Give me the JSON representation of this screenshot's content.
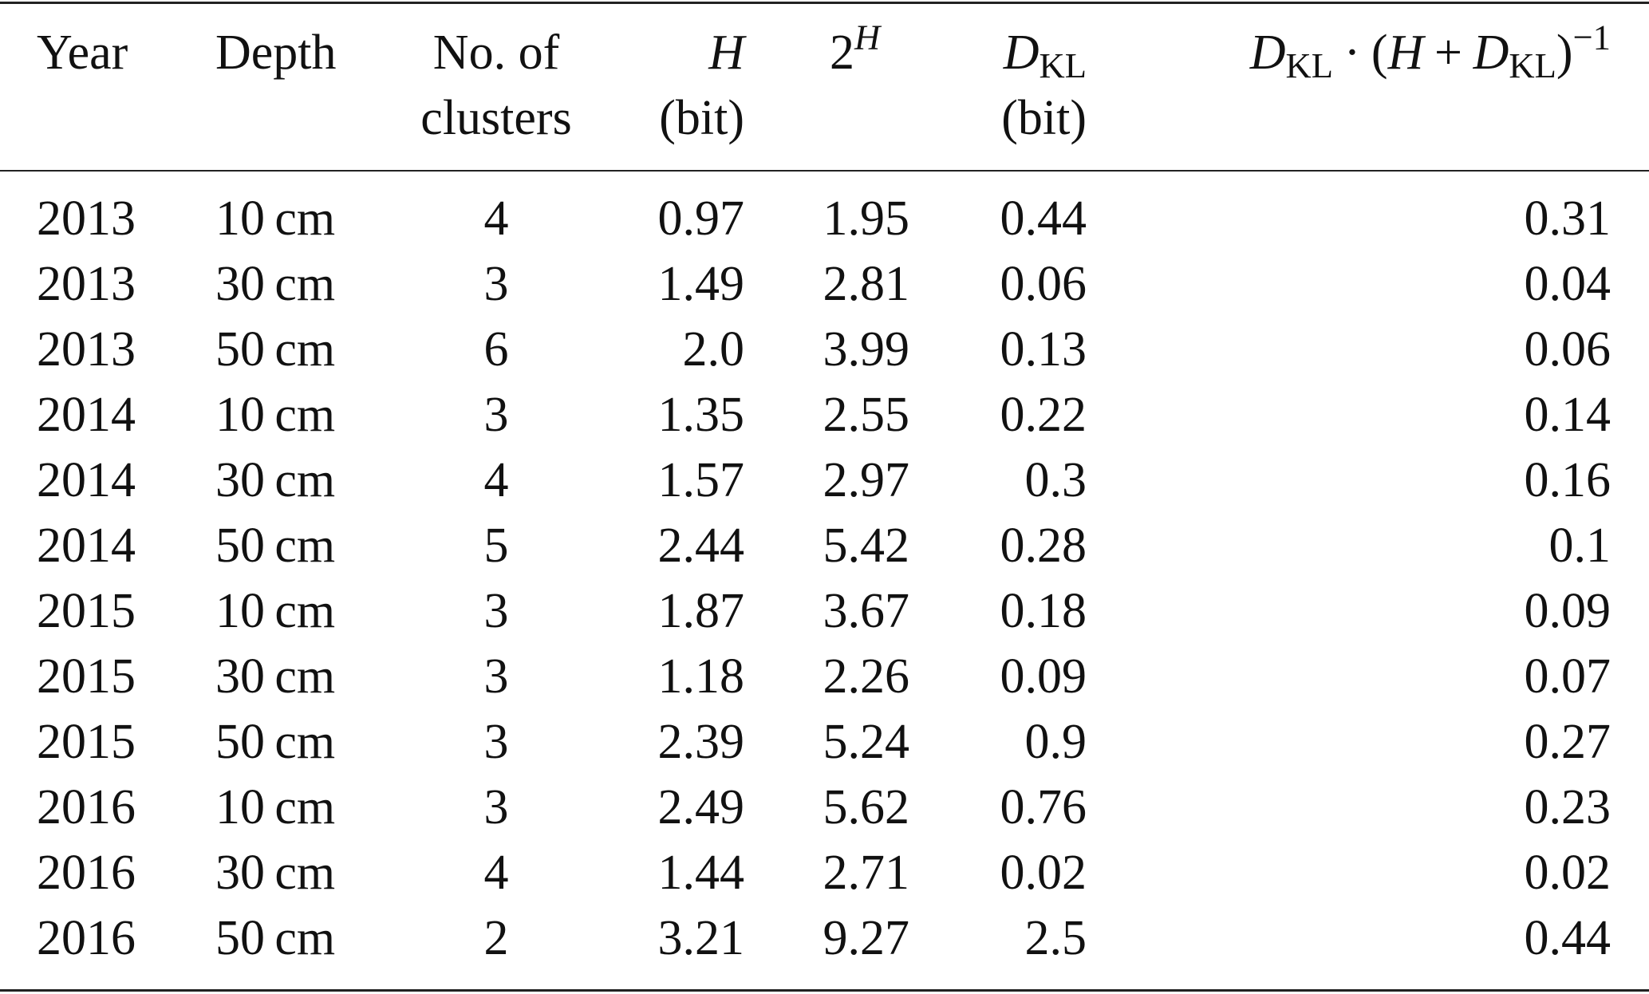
{
  "table": {
    "header": {
      "year": "Year",
      "depth": "Depth",
      "clusters": [
        "No. of",
        "clusters"
      ],
      "entropy": {
        "symbol": "H",
        "unit": "(bit)"
      },
      "perplexity": {
        "base": "2",
        "exponent": "H"
      },
      "divergence": {
        "symbol": "D",
        "subscript": "KL",
        "unit": "(bit)"
      },
      "ratio": [
        "D",
        "KL",
        "·",
        "(",
        "H",
        "+",
        "D",
        "KL",
        ")",
        "−1"
      ]
    },
    "rows": [
      [
        "2013",
        "10 cm",
        "4",
        "0.97",
        "1.95",
        "0.44",
        "0.31"
      ],
      [
        "2013",
        "30 cm",
        "3",
        "1.49",
        "2.81",
        "0.06",
        "0.04"
      ],
      [
        "2013",
        "50 cm",
        "6",
        "2.0",
        "3.99",
        "0.13",
        "0.06"
      ],
      [
        "2014",
        "10 cm",
        "3",
        "1.35",
        "2.55",
        "0.22",
        "0.14"
      ],
      [
        "2014",
        "30 cm",
        "4",
        "1.57",
        "2.97",
        "0.3",
        "0.16"
      ],
      [
        "2014",
        "50 cm",
        "5",
        "2.44",
        "5.42",
        "0.28",
        "0.1"
      ],
      [
        "2015",
        "10 cm",
        "3",
        "1.87",
        "3.67",
        "0.18",
        "0.09"
      ],
      [
        "2015",
        "30 cm",
        "3",
        "1.18",
        "2.26",
        "0.09",
        "0.07"
      ],
      [
        "2015",
        "50 cm",
        "3",
        "2.39",
        "5.24",
        "0.9",
        "0.27"
      ],
      [
        "2016",
        "10 cm",
        "3",
        "2.49",
        "5.62",
        "0.76",
        "0.23"
      ],
      [
        "2016",
        "30 cm",
        "4",
        "1.44",
        "2.71",
        "0.02",
        "0.02"
      ],
      [
        "2016",
        "50 cm",
        "2",
        "3.21",
        "9.27",
        "2.5",
        "0.44"
      ]
    ]
  }
}
